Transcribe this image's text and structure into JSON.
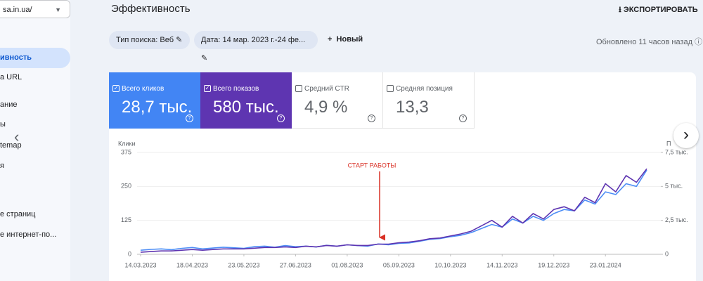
{
  "sidebar": {
    "property": "sa.in.ua/",
    "items": [
      "ивность",
      "а URL",
      "ание",
      "ы",
      "temap",
      "я",
      "е страниц",
      "е интернет-по..."
    ]
  },
  "header": {
    "title": "Эффективность",
    "export": "ЭКСПОРТИРОВАТЬ"
  },
  "filters": {
    "search_type": "Тип поиска: Веб",
    "date": "Дата: 14 мар. 2023 г.-24 фе...",
    "new": "Новый",
    "updated": "Обновлено 11 часов назад"
  },
  "metrics": [
    {
      "label": "Всего кликов",
      "value": "28,7 тыс.",
      "checked": true,
      "color": "#4285f4"
    },
    {
      "label": "Всего показов",
      "value": "580 тыс.",
      "checked": true,
      "color": "#5e35b1"
    },
    {
      "label": "Средний CTR",
      "value": "4,9 %",
      "checked": false
    },
    {
      "label": "Средняя позиция",
      "value": "13,3",
      "checked": false
    }
  ],
  "chart_data": {
    "type": "line",
    "y_label": "Клики",
    "y2_label": "П",
    "annotation": "СТАРТ РАБОТЫ",
    "annotation_color": "#d93025",
    "x": [
      "14.03.2023",
      "21.03.2023",
      "28.03.2023",
      "04.04.2023",
      "11.04.2023",
      "18.04.2023",
      "25.04.2023",
      "02.05.2023",
      "09.05.2023",
      "16.05.2023",
      "23.05.2023",
      "30.05.2023",
      "06.06.2023",
      "13.06.2023",
      "20.06.2023",
      "27.06.2023",
      "04.07.2023",
      "11.07.2023",
      "18.07.2023",
      "25.07.2023",
      "01.08.2023",
      "08.08.2023",
      "15.08.2023",
      "22.08.2023",
      "29.08.2023",
      "05.09.2023",
      "12.09.2023",
      "19.09.2023",
      "26.09.2023",
      "03.10.2023",
      "10.10.2023",
      "17.10.2023",
      "24.10.2023",
      "31.10.2023",
      "07.11.2023",
      "14.11.2023",
      "21.11.2023",
      "28.11.2023",
      "05.12.2023",
      "12.12.2023",
      "19.12.2023",
      "26.12.2023",
      "02.01.2024",
      "09.01.2024",
      "16.01.2024",
      "23.01.2024",
      "30.01.2024",
      "06.02.2024",
      "13.02.2024",
      "20.02.2024"
    ],
    "series": [
      {
        "color": "#4c8df6",
        "values": [
          15,
          18,
          20,
          17,
          22,
          25,
          20,
          23,
          26,
          24,
          22,
          28,
          30,
          26,
          32,
          28,
          30,
          27,
          33,
          30,
          35,
          32,
          30,
          38,
          35,
          40,
          42,
          48,
          55,
          58,
          65,
          70,
          80,
          95,
          110,
          100,
          130,
          115,
          140,
          125,
          150,
          165,
          160,
          200,
          185,
          230,
          220,
          260,
          250,
          310
        ]
      },
      {
        "color": "#5e35b1",
        "axis": "y2",
        "values": [
          150,
          200,
          250,
          250,
          300,
          350,
          300,
          350,
          400,
          400,
          400,
          450,
          500,
          500,
          550,
          500,
          600,
          550,
          650,
          600,
          700,
          650,
          650,
          750,
          750,
          850,
          900,
          1000,
          1150,
          1200,
          1350,
          1500,
          1700,
          2100,
          2500,
          2000,
          2800,
          2300,
          3000,
          2600,
          3300,
          3500,
          3200,
          4200,
          3800,
          5200,
          4600,
          5800,
          5300,
          6300
        ]
      }
    ],
    "ylim": [
      0,
      375
    ],
    "yticks": [
      0,
      125,
      250,
      375
    ],
    "y2lim": [
      0,
      7500
    ],
    "y2ticks": [
      0,
      {
        "value": 2500,
        "label": "2,5 тыс."
      },
      {
        "value": 5000,
        "label": "5 тыс."
      },
      {
        "value": 7500,
        "label": "7,5 тыс."
      }
    ],
    "xticks": [
      "14.03.2023",
      "18.04.2023",
      "23.05.2023",
      "27.06.2023",
      "01.08.2023",
      "05.09.2023",
      "10.10.2023",
      "14.11.2023",
      "19.12.2023",
      "23.01.2024"
    ],
    "grid": true
  }
}
